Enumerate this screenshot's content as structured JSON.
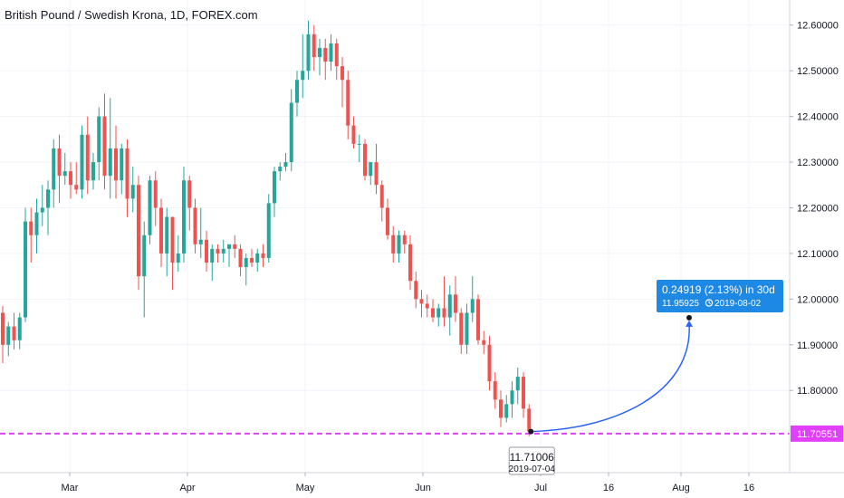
{
  "chart_data": {
    "type": "candlestick",
    "title": "British Pound / Swedish Krona, 1D, FOREX.com",
    "ylim": [
      11.62,
      12.655
    ],
    "y_ticks": [
      "12.60000",
      "12.50000",
      "12.40000",
      "12.30000",
      "12.20000",
      "12.10000",
      "12.00000",
      "11.90000",
      "11.80000"
    ],
    "y_tick_values": [
      12.6,
      12.5,
      12.4,
      12.3,
      12.2,
      12.1,
      12.0,
      11.9,
      11.8
    ],
    "x_ticks": [
      "Mar",
      "Apr",
      "May",
      "Jun",
      "Jul",
      "16",
      "Aug",
      "16"
    ],
    "grid": true,
    "colors": {
      "up": "#26a69a",
      "down": "#ef5350",
      "price_line": "#e040fb",
      "projection": "#2962ff"
    },
    "current_price": {
      "value": 11.70551,
      "label": "11.70551"
    },
    "cursor_label": {
      "value": "11.71006",
      "date": "2019-07-04"
    },
    "projection": {
      "from_value": 11.71006,
      "to_value": 11.95925,
      "change_text": "0.24919 (2.13%) in 30d",
      "target_text": "11.95925",
      "target_date": "2019-08-02",
      "clock_icon": "clock-icon"
    },
    "candles": [
      [
        11.97,
        11.985,
        11.86,
        11.9
      ],
      [
        11.9,
        11.95,
        11.875,
        11.94
      ],
      [
        11.94,
        11.97,
        11.89,
        11.91
      ],
      [
        11.91,
        11.97,
        11.89,
        11.96
      ],
      [
        11.96,
        12.2,
        11.95,
        12.17
      ],
      [
        12.17,
        12.2,
        12.08,
        12.14
      ],
      [
        12.14,
        12.22,
        12.1,
        12.19
      ],
      [
        12.19,
        12.25,
        12.16,
        12.2
      ],
      [
        12.2,
        12.26,
        12.14,
        12.24
      ],
      [
        12.24,
        12.35,
        12.2,
        12.33
      ],
      [
        12.33,
        12.36,
        12.21,
        12.27
      ],
      [
        12.27,
        12.32,
        12.25,
        12.28
      ],
      [
        12.28,
        12.3,
        12.22,
        12.25
      ],
      [
        12.25,
        12.3,
        12.23,
        12.24
      ],
      [
        12.24,
        12.38,
        12.22,
        12.36
      ],
      [
        12.36,
        12.4,
        12.23,
        12.26
      ],
      [
        12.26,
        12.32,
        12.24,
        12.3
      ],
      [
        12.3,
        12.42,
        12.26,
        12.4
      ],
      [
        12.4,
        12.45,
        12.24,
        12.27
      ],
      [
        12.27,
        12.44,
        12.22,
        12.33
      ],
      [
        12.33,
        12.38,
        12.22,
        12.26
      ],
      [
        12.26,
        12.34,
        12.23,
        12.33
      ],
      [
        12.33,
        12.35,
        12.18,
        12.22
      ],
      [
        12.22,
        12.29,
        12.19,
        12.25
      ],
      [
        12.25,
        12.27,
        12.02,
        12.05
      ],
      [
        12.05,
        12.17,
        11.96,
        12.14
      ],
      [
        12.14,
        12.27,
        12.12,
        12.26
      ],
      [
        12.26,
        12.28,
        12.16,
        12.2
      ],
      [
        12.2,
        12.22,
        12.07,
        12.1
      ],
      [
        12.1,
        12.2,
        12.05,
        12.18
      ],
      [
        12.18,
        12.18,
        12.02,
        12.08
      ],
      [
        12.08,
        12.14,
        12.06,
        12.1
      ],
      [
        12.1,
        12.29,
        12.08,
        12.26
      ],
      [
        12.26,
        12.27,
        12.15,
        12.2
      ],
      [
        12.2,
        12.22,
        12.1,
        12.12
      ],
      [
        12.12,
        12.2,
        12.09,
        12.13
      ],
      [
        12.13,
        12.15,
        12.06,
        12.08
      ],
      [
        12.08,
        12.12,
        12.04,
        12.11
      ],
      [
        12.11,
        12.12,
        12.08,
        12.1
      ],
      [
        12.1,
        12.13,
        12.08,
        12.11
      ],
      [
        12.11,
        12.12,
        12.07,
        12.12
      ],
      [
        12.12,
        12.14,
        12.09,
        12.11
      ],
      [
        12.11,
        12.12,
        12.05,
        12.07
      ],
      [
        12.07,
        12.1,
        12.03,
        12.09
      ],
      [
        12.09,
        12.11,
        12.07,
        12.08
      ],
      [
        12.08,
        12.11,
        12.06,
        12.1
      ],
      [
        12.1,
        12.12,
        12.07,
        12.09
      ],
      [
        12.09,
        12.23,
        12.08,
        12.21
      ],
      [
        12.21,
        12.29,
        12.18,
        12.28
      ],
      [
        12.28,
        12.3,
        12.26,
        12.29
      ],
      [
        12.29,
        12.32,
        12.28,
        12.3
      ],
      [
        12.3,
        12.46,
        12.28,
        12.43
      ],
      [
        12.43,
        12.5,
        12.4,
        12.48
      ],
      [
        12.48,
        12.58,
        12.44,
        12.5
      ],
      [
        12.5,
        12.61,
        12.48,
        12.58
      ],
      [
        12.58,
        12.6,
        12.5,
        12.53
      ],
      [
        12.53,
        12.57,
        12.49,
        12.55
      ],
      [
        12.55,
        12.57,
        12.48,
        12.52
      ],
      [
        12.52,
        12.58,
        12.5,
        12.56
      ],
      [
        12.56,
        12.57,
        12.48,
        12.51
      ],
      [
        12.51,
        12.53,
        12.42,
        12.48
      ],
      [
        12.48,
        12.5,
        12.35,
        12.38
      ],
      [
        12.38,
        12.4,
        12.33,
        12.34
      ],
      [
        12.34,
        12.36,
        12.3,
        12.34
      ],
      [
        12.34,
        12.35,
        12.26,
        12.27
      ],
      [
        12.27,
        12.3,
        12.25,
        12.3
      ],
      [
        12.3,
        12.34,
        12.23,
        12.25
      ],
      [
        12.25,
        12.26,
        12.17,
        12.2
      ],
      [
        12.2,
        12.22,
        12.13,
        12.14
      ],
      [
        12.14,
        12.16,
        12.08,
        12.1
      ],
      [
        12.1,
        12.15,
        12.08,
        12.14
      ],
      [
        12.14,
        12.15,
        12.1,
        12.12
      ],
      [
        12.12,
        12.14,
        12.02,
        12.04
      ],
      [
        12.04,
        12.06,
        11.98,
        12.0
      ],
      [
        12.0,
        12.02,
        11.96,
        11.99
      ],
      [
        11.99,
        12.01,
        11.96,
        11.98
      ],
      [
        11.98,
        12.0,
        11.95,
        11.96
      ],
      [
        11.96,
        11.99,
        11.94,
        11.98
      ],
      [
        11.98,
        12.05,
        11.94,
        11.96
      ],
      [
        11.96,
        12.03,
        11.92,
        12.01
      ],
      [
        12.01,
        12.05,
        11.95,
        11.97
      ],
      [
        11.97,
        11.98,
        11.88,
        11.9
      ],
      [
        11.9,
        11.99,
        11.88,
        11.97
      ],
      [
        11.97,
        12.05,
        11.95,
        12.0
      ],
      [
        12.0,
        12.01,
        11.9,
        11.91
      ],
      [
        11.91,
        11.93,
        11.88,
        11.9
      ],
      [
        11.9,
        11.92,
        11.8,
        11.82
      ],
      [
        11.82,
        11.84,
        11.76,
        11.78
      ],
      [
        11.78,
        11.8,
        11.72,
        11.74
      ],
      [
        11.74,
        11.79,
        11.73,
        11.77
      ],
      [
        11.77,
        11.82,
        11.74,
        11.8
      ],
      [
        11.8,
        11.85,
        11.77,
        11.83
      ],
      [
        11.83,
        11.84,
        11.74,
        11.76
      ],
      [
        11.76,
        11.77,
        11.7,
        11.71
      ]
    ]
  }
}
